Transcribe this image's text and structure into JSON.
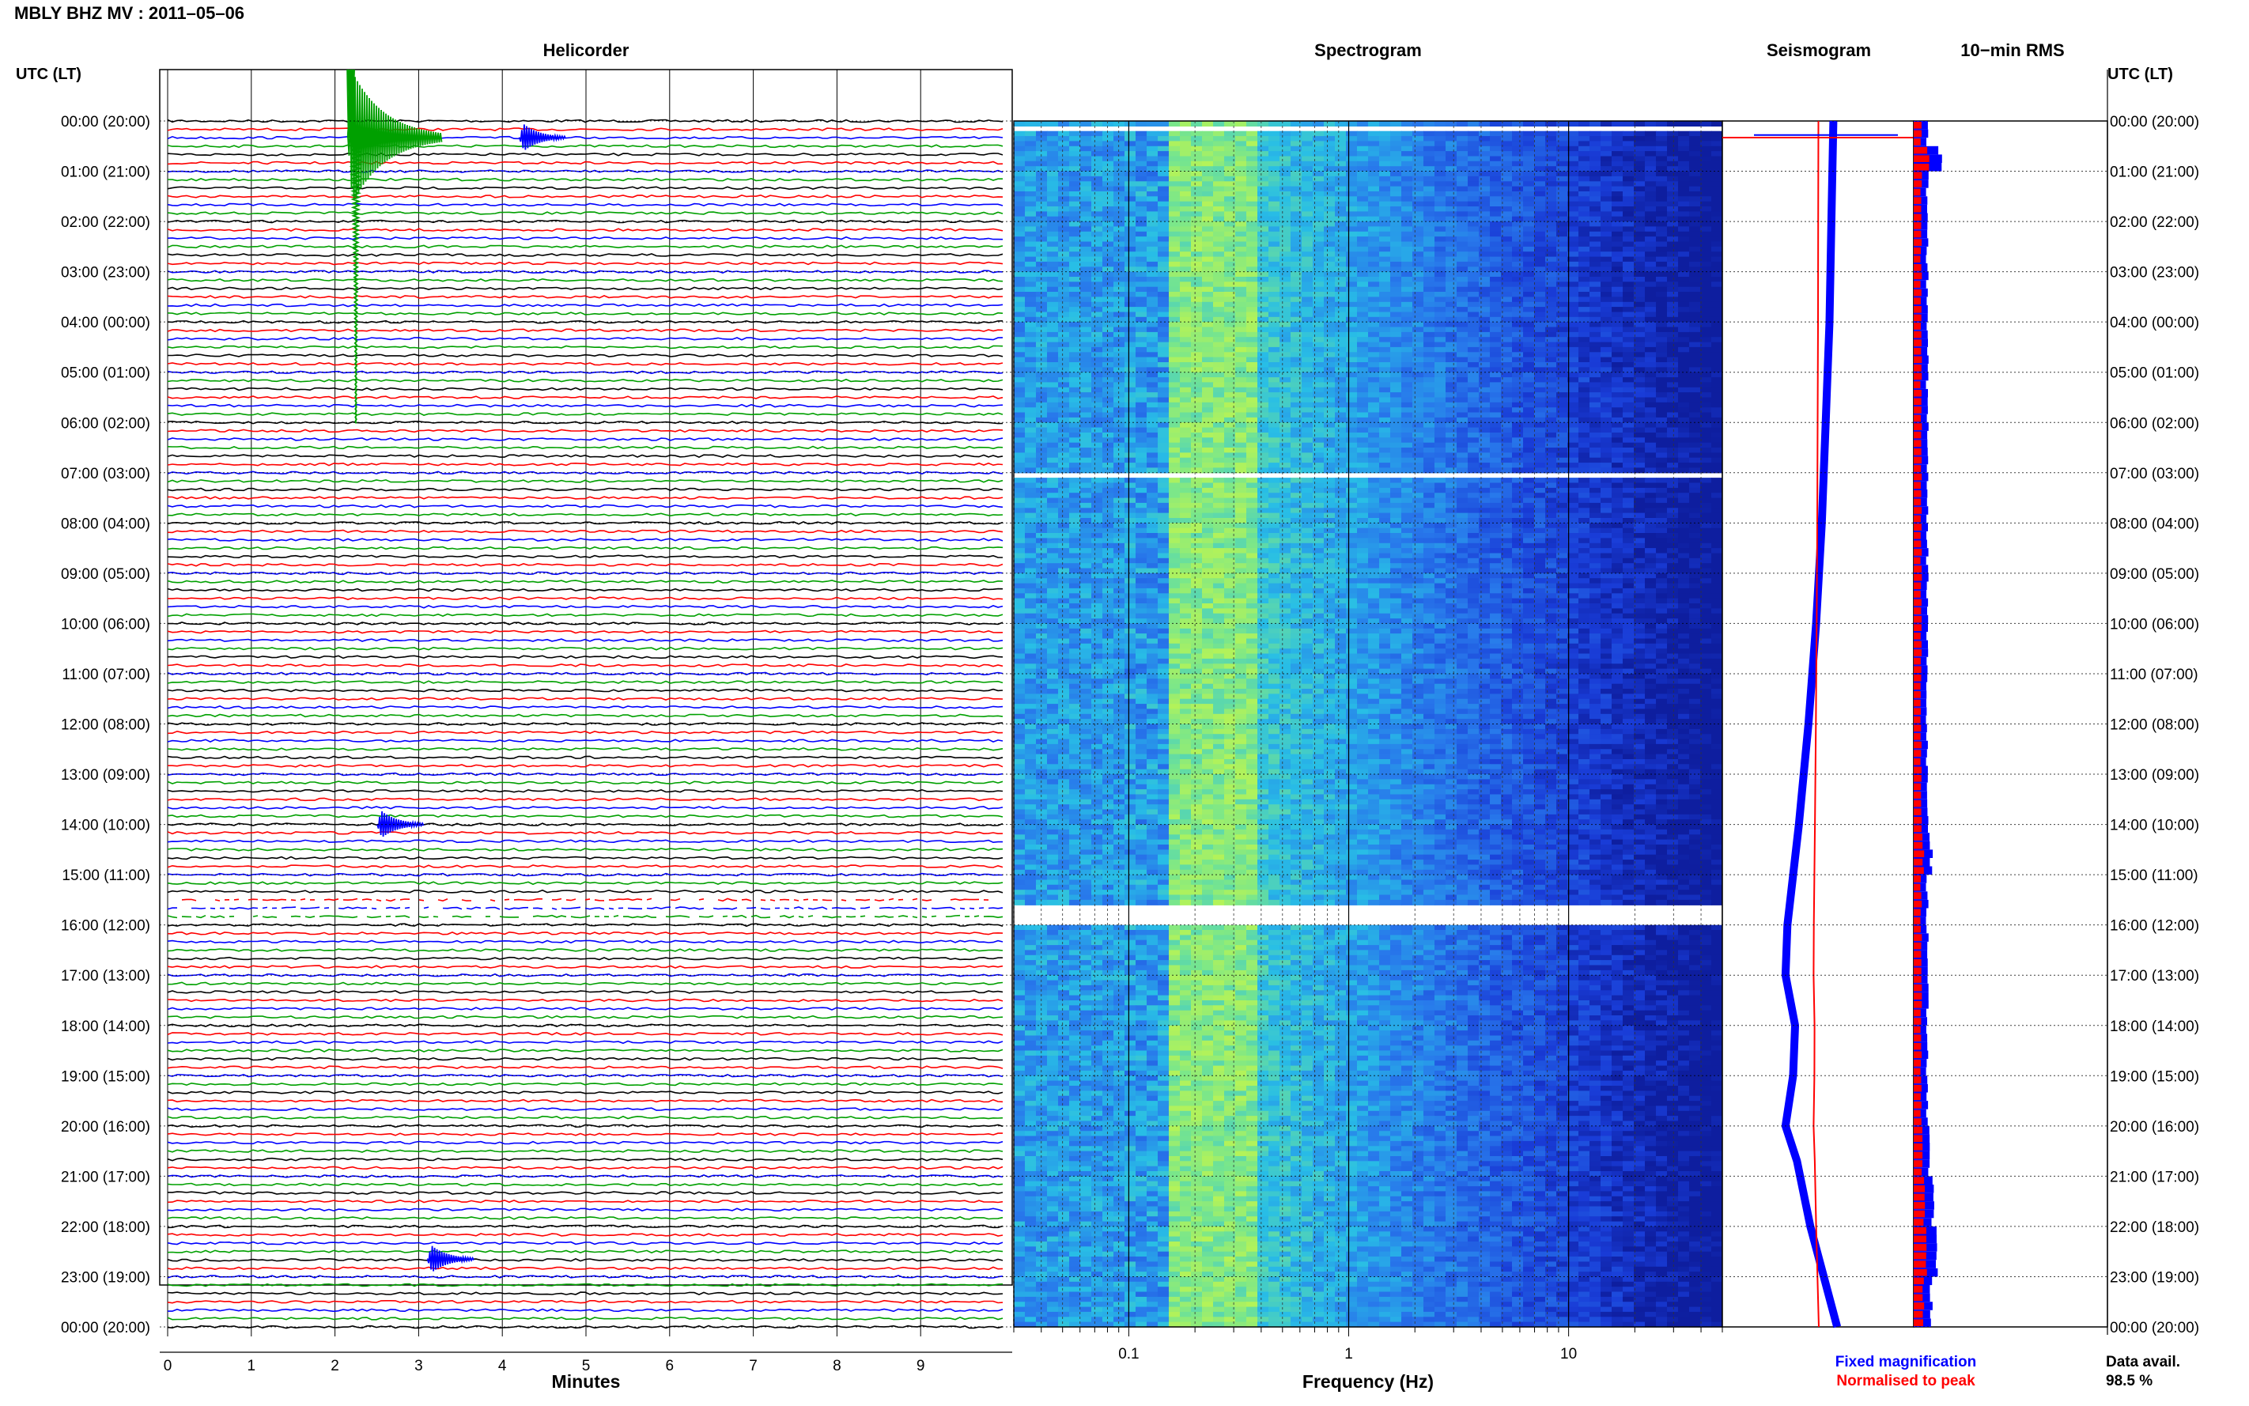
{
  "header": {
    "title": "MBLY BHZ MV : 2011–05–06"
  },
  "panels": {
    "helicorder_title": "Helicorder",
    "spectrogram_title": "Spectrogram",
    "seismogram_title": "Seismogram",
    "rms_title": "10−min RMS"
  },
  "axes": {
    "left_axis_label": "UTC (LT)",
    "right_axis_label": "UTC (LT)",
    "helicorder_xlabel": "Minutes",
    "spectrogram_xlabel": "Frequency (Hz)"
  },
  "legend": {
    "fixed": "Fixed magnification",
    "fixed_color": "#0000ff",
    "normalised": "Normalised to peak",
    "normalised_color": "#ff0000"
  },
  "footer": {
    "avail_label": "Data avail.",
    "avail_value": "98.5 %"
  },
  "colors": {
    "trace_colors": [
      "#000000",
      "#ff0000",
      "#0000ff",
      "#00a000"
    ],
    "spectrogram_low": "#0a14a0",
    "spectrogram_high": "#b4f050"
  },
  "chart_data": [
    {
      "type": "line",
      "name": "Helicorder",
      "xlabel": "Minutes",
      "x_ticks": [
        0,
        1,
        2,
        3,
        4,
        5,
        6,
        7,
        8,
        9
      ],
      "xlim": [
        0,
        10
      ],
      "rows_per_hour": 6,
      "hours": 24,
      "y_tick_labels": [
        "00:00 (20:00)",
        "01:00 (21:00)",
        "02:00 (22:00)",
        "03:00 (23:00)",
        "04:00 (00:00)",
        "05:00 (01:00)",
        "06:00 (02:00)",
        "07:00 (03:00)",
        "08:00 (04:00)",
        "09:00 (05:00)",
        "10:00 (06:00)",
        "11:00 (07:00)",
        "12:00 (08:00)",
        "13:00 (09:00)",
        "14:00 (10:00)",
        "15:00 (11:00)",
        "16:00 (12:00)",
        "17:00 (13:00)",
        "18:00 (14:00)",
        "19:00 (15:00)",
        "20:00 (16:00)",
        "21:00 (17:00)",
        "22:00 (18:00)",
        "23:00 (19:00)",
        "00:00 (20:00)"
      ],
      "events": [
        {
          "hour": 0.33,
          "minute": 2.25,
          "note": "large event"
        },
        {
          "hour": 0.33,
          "minute": 4.3,
          "note": "small event"
        },
        {
          "hour": 14.0,
          "minute": 2.6,
          "note": "small event"
        },
        {
          "hour": 22.65,
          "minute": 3.2,
          "note": "small event"
        }
      ],
      "gaps": [
        {
          "hour_from": 15.5,
          "hour_to": 15.9
        }
      ]
    },
    {
      "type": "heatmap",
      "name": "Spectrogram",
      "xlabel": "Frequency (Hz)",
      "x_scale": "log",
      "x_tick_labels": [
        "0.1",
        "1",
        "10"
      ],
      "xlim": [
        0.03,
        50
      ],
      "gaps": [
        {
          "hour": 0.1
        },
        {
          "hour": 7.0
        },
        {
          "hour_from": 15.55,
          "hour_to": 15.9
        }
      ],
      "energy_peak_band_hz": [
        0.15,
        0.4
      ]
    },
    {
      "type": "line",
      "name": "Seismogram",
      "series": [
        {
          "name": "Fixed magnification",
          "color": "#0000ff"
        },
        {
          "name": "Normalised to peak",
          "color": "#ff0000"
        }
      ],
      "fixed_profile_hours": [
        0,
        2,
        4,
        6,
        8,
        10,
        12,
        14,
        16,
        17,
        18,
        19,
        20,
        20.7,
        22,
        23,
        24
      ],
      "fixed_profile_values": [
        0.58,
        0.57,
        0.56,
        0.54,
        0.52,
        0.49,
        0.45,
        0.4,
        0.34,
        0.33,
        0.38,
        0.37,
        0.33,
        0.39,
        0.46,
        0.53,
        0.6
      ]
    },
    {
      "type": "bar",
      "name": "10-min RMS",
      "rms_hours": [
        0,
        0.2,
        0.35,
        0.5,
        1,
        3,
        6,
        9,
        12,
        14,
        14.1,
        15,
        16,
        18,
        20,
        20.9,
        21,
        22,
        23,
        24
      ],
      "rms_values": [
        0.08,
        0.07,
        0.5,
        0.14,
        0.07,
        0.07,
        0.07,
        0.07,
        0.07,
        0.08,
        0.09,
        0.07,
        0.07,
        0.07,
        0.08,
        0.14,
        0.1,
        0.12,
        0.09,
        0.08
      ]
    }
  ]
}
